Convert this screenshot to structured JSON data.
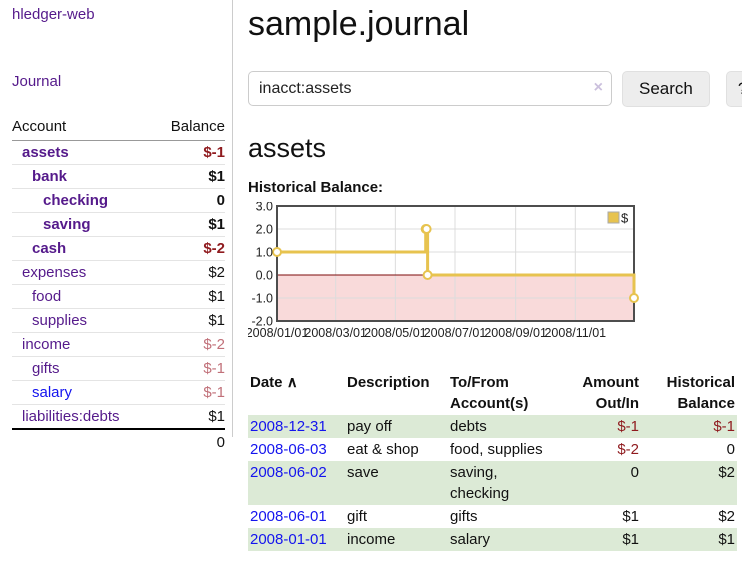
{
  "app": {
    "title": "hledger-web"
  },
  "sidebar": {
    "journal_link": "Journal",
    "account_header": "Account",
    "balance_header": "Balance",
    "accounts": [
      {
        "name": "assets",
        "level": 1,
        "bold": true,
        "balance": "$-1",
        "tone": "neg-strong",
        "link": "purple"
      },
      {
        "name": "bank",
        "level": 2,
        "bold": true,
        "balance": "$1",
        "tone": "pos",
        "link": "purple"
      },
      {
        "name": "checking",
        "level": 3,
        "bold": true,
        "balance": "0",
        "tone": "pos",
        "link": "purple"
      },
      {
        "name": "saving",
        "level": 3,
        "bold": true,
        "balance": "$1",
        "tone": "pos",
        "link": "purple"
      },
      {
        "name": "cash",
        "level": 2,
        "bold": true,
        "balance": "$-2",
        "tone": "neg-strong",
        "link": "purple"
      },
      {
        "name": "expenses",
        "level": 1,
        "bold": false,
        "balance": "$2",
        "tone": "pos",
        "link": "purple"
      },
      {
        "name": "food",
        "level": 2,
        "bold": false,
        "balance": "$1",
        "tone": "pos",
        "link": "purple"
      },
      {
        "name": "supplies",
        "level": 2,
        "bold": false,
        "balance": "$1",
        "tone": "pos",
        "link": "purple"
      },
      {
        "name": "income",
        "level": 1,
        "bold": false,
        "balance": "$-2",
        "tone": "neg-soft",
        "link": "purple"
      },
      {
        "name": "gifts",
        "level": 2,
        "bold": false,
        "balance": "$-1",
        "tone": "neg-soft",
        "link": "purple"
      },
      {
        "name": "salary",
        "level": 2,
        "bold": false,
        "balance": "$-1",
        "tone": "neg-soft",
        "link": "blue"
      },
      {
        "name": "liabilities:debts",
        "level": 1,
        "bold": false,
        "balance": "$1",
        "tone": "pos",
        "link": "purple"
      }
    ],
    "total": "0"
  },
  "header": {
    "title": "sample.journal"
  },
  "search": {
    "value": "inacct:assets",
    "clear_icon": "×",
    "button_label": "Search",
    "help_label": "?"
  },
  "account_page": {
    "title": "assets",
    "chart_label": "Historical Balance:"
  },
  "chart_data": {
    "type": "line",
    "title": "Historical Balance",
    "step": true,
    "series": [
      {
        "name": "$",
        "points": [
          [
            "2008-01-01",
            1
          ],
          [
            "2008-06-01",
            2
          ],
          [
            "2008-06-02",
            2
          ],
          [
            "2008-06-03",
            0
          ],
          [
            "2008-12-31",
            -1
          ]
        ]
      }
    ],
    "xrange": [
      "2008-01-01",
      "2008-12-31"
    ],
    "ylim": [
      -2,
      3
    ],
    "yticks": [
      "3.0",
      "2.0",
      "1.0",
      "0.0",
      "-1.0",
      "-2.0"
    ],
    "ytick_values": [
      3,
      2,
      1,
      0,
      -1,
      -2
    ],
    "xtick_labels": [
      "2008/01/01",
      "2008/03/01",
      "2008/05/01",
      "2008/07/01",
      "2008/09/01",
      "2008/11/01"
    ],
    "xtick_dates": [
      "2008-01-01",
      "2008-03-01",
      "2008-05-01",
      "2008-07-01",
      "2008-09-01",
      "2008-11-01"
    ],
    "grid": true,
    "legend_position": "top-right",
    "colors": {
      "line": "#e7c34f",
      "marker_fill": "#ffffff",
      "negative_fill": "#f9dada",
      "zero_line": "#7c0a0a",
      "gridline": "#dcdcdc",
      "border": "#4d4d4d",
      "tick_text": "#222222"
    }
  },
  "register": {
    "columns": {
      "date": "Date",
      "sort_arrow": "∧",
      "description": "Description",
      "accounts": "To/From Account(s)",
      "amount": "Amount Out/In",
      "balance": "Historical Balance"
    },
    "rows": [
      {
        "date": "2008-12-31",
        "description": "pay off",
        "accounts": "debts",
        "amount": "$-1",
        "amount_neg": true,
        "balance": "$-1",
        "balance_neg": true,
        "green": true
      },
      {
        "date": "2008-06-03",
        "description": "eat & shop",
        "accounts": "food, supplies",
        "amount": "$-2",
        "amount_neg": true,
        "balance": "0",
        "balance_neg": false,
        "green": false
      },
      {
        "date": "2008-06-02",
        "description": "save",
        "accounts": "saving, checking",
        "amount": "0",
        "amount_neg": false,
        "balance": "$2",
        "balance_neg": false,
        "green": true
      },
      {
        "date": "2008-06-01",
        "description": "gift",
        "accounts": "gifts",
        "amount": "$1",
        "amount_neg": false,
        "balance": "$2",
        "balance_neg": false,
        "green": false
      },
      {
        "date": "2008-01-01",
        "description": "income",
        "accounts": "salary",
        "amount": "$1",
        "amount_neg": false,
        "balance": "$1",
        "balance_neg": false,
        "green": true
      }
    ]
  },
  "colors": {
    "link_purple": "#551a8b",
    "link_blue": "#1414ee",
    "negative_strong": "#8f1a1e",
    "negative_soft": "#c17079",
    "row_green": "#dcead6",
    "accent_gold": "#e7c34f"
  }
}
